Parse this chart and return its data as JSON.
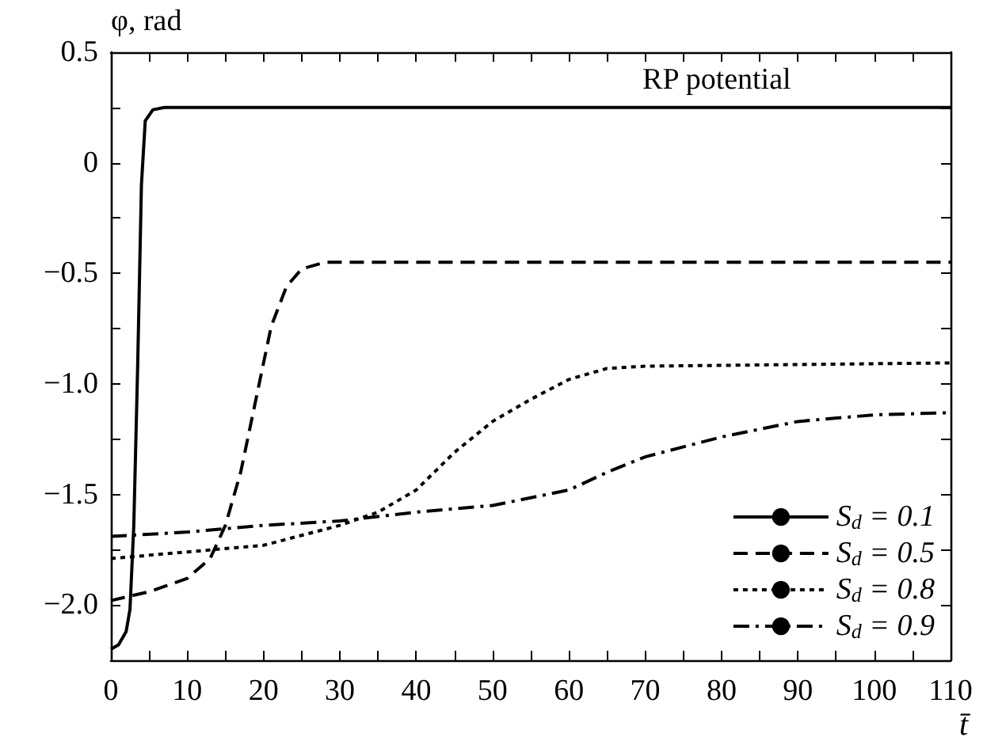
{
  "chart_data": {
    "type": "line",
    "ylabel": "φ, rad",
    "xlabel": "t̄",
    "annotations": [
      "RP potential"
    ],
    "xlim": [
      0,
      110
    ],
    "xticks": [
      0,
      {
        "value": 5,
        "label": null
      },
      10,
      {
        "value": 15,
        "label": null
      },
      20,
      {
        "value": 25,
        "label": null
      },
      30,
      {
        "value": 35,
        "label": null
      },
      40,
      {
        "value": 45,
        "label": null
      },
      50,
      {
        "value": 55,
        "label": null
      },
      60,
      {
        "value": 65,
        "label": null
      },
      70,
      {
        "value": 75,
        "label": null
      },
      80,
      {
        "value": 85,
        "label": null
      },
      90,
      {
        "value": 95,
        "label": null
      },
      100,
      {
        "value": 105,
        "label": null
      },
      110
    ],
    "ylim": [
      -2.25,
      0.5
    ],
    "yticks": [
      {
        "value": -2.25,
        "label": null
      },
      {
        "value": -2.0,
        "label": "−2.0"
      },
      {
        "value": -1.75,
        "label": null
      },
      {
        "value": -1.5,
        "label": "−1.5"
      },
      {
        "value": -1.25,
        "label": null
      },
      {
        "value": -1.0,
        "label": "−1.0"
      },
      {
        "value": -0.75,
        "label": null
      },
      {
        "value": -0.5,
        "label": "−0.5"
      },
      {
        "value": -0.25,
        "label": null
      },
      0,
      {
        "value": 0.25,
        "label": null
      },
      0.5
    ],
    "grid": false,
    "legend": "bottom right",
    "marker": "none",
    "series": [
      {
        "name": "S$_{d}$ = 0.1",
        "color": "#000000",
        "line_style": "solid",
        "x": [
          0,
          1,
          2,
          2.5,
          3,
          3.5,
          4,
          4.5,
          5.5,
          7,
          110
        ],
        "values": [
          -2.2,
          -2.18,
          -2.12,
          -2.02,
          -1.64,
          -0.93,
          -0.1,
          0.19,
          0.24,
          0.25,
          0.25
        ]
      },
      {
        "name": "S$_{d}$ = 0.5",
        "color": "#000000",
        "line_style": "dashed",
        "x": [
          0,
          5,
          10,
          13,
          15,
          17,
          19,
          21,
          23,
          25,
          28,
          110
        ],
        "values": [
          -1.98,
          -1.94,
          -1.88,
          -1.79,
          -1.64,
          -1.4,
          -1.07,
          -0.74,
          -0.56,
          -0.48,
          -0.45,
          -0.45
        ]
      },
      {
        "name": "S$_{d}$ = 0.8",
        "color": "#000000",
        "line_style": "dotted",
        "x": [
          0,
          10,
          20,
          30,
          35,
          40,
          45,
          50,
          55,
          60,
          65,
          70,
          110
        ],
        "values": [
          -1.79,
          -1.76,
          -1.73,
          -1.64,
          -1.58,
          -1.48,
          -1.31,
          -1.17,
          -1.07,
          -0.98,
          -0.93,
          -0.92,
          -0.905
        ]
      },
      {
        "name": "S$_{d}$ = 0.9",
        "color": "#000000",
        "line_style": "dashdot",
        "x": [
          0,
          10,
          20,
          30,
          40,
          50,
          60,
          65,
          70,
          80,
          90,
          100,
          110
        ],
        "values": [
          -1.69,
          -1.67,
          -1.64,
          -1.62,
          -1.58,
          -1.55,
          -1.48,
          -1.4,
          -1.33,
          -1.24,
          -1.17,
          -1.14,
          -1.13
        ]
      }
    ]
  }
}
